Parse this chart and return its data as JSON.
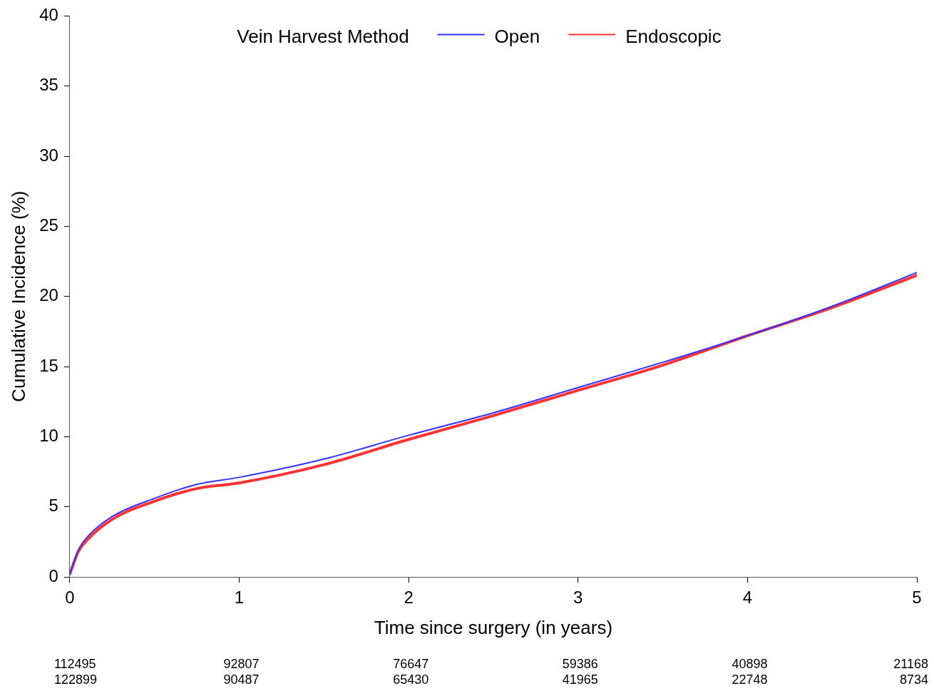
{
  "chart_data": {
    "type": "line",
    "xlabel": "Time since surgery (in years)",
    "ylabel": "Cumulative Incidence (%)",
    "legend_title": "Vein Harvest Method",
    "legend": "top",
    "grid": false,
    "marker": "none",
    "line_style": "solid",
    "x": [
      0,
      0.05,
      0.1,
      0.25,
      0.5,
      0.75,
      1,
      1.5,
      2,
      2.5,
      3,
      3.5,
      4,
      4.5,
      5
    ],
    "series": [
      {
        "name": "Open",
        "color": "#3333ff",
        "values": [
          0.2,
          1.9,
          2.8,
          4.3,
          5.6,
          6.6,
          7.1,
          8.4,
          10.1,
          11.7,
          13.5,
          15.3,
          17.2,
          19.3,
          21.7
        ]
      },
      {
        "name": "Endoscopic",
        "color": "#ff3333",
        "values": [
          0.2,
          1.8,
          2.6,
          4.1,
          5.4,
          6.3,
          6.7,
          8.0,
          9.8,
          11.5,
          13.3,
          15.1,
          17.2,
          19.2,
          21.5
        ]
      }
    ],
    "xlim": [
      0,
      5
    ],
    "xticks": [
      0,
      1,
      2,
      3,
      4,
      5
    ],
    "ylim": [
      0,
      40
    ],
    "yticks": [
      0,
      5,
      10,
      15,
      20,
      25,
      30,
      35,
      40
    ],
    "annotations": [
      "112495",
      "92807",
      "76647",
      "59386",
      "40898",
      "21168",
      "122899",
      "90487",
      "65430",
      "41965",
      "22748",
      "8734"
    ]
  }
}
